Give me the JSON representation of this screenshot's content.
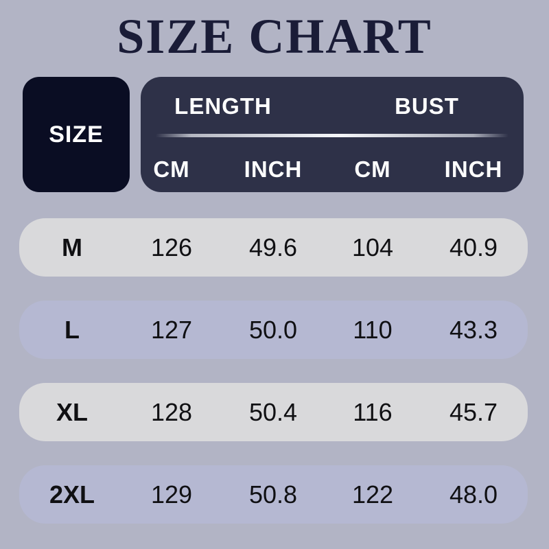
{
  "title": "SIZE CHART",
  "colors": {
    "page_background": "#b2b4c5",
    "title_text": "#1a1c37",
    "size_box_background": "#0a0d23",
    "measurement_box_background": "#2e3148",
    "header_text": "#ffffff",
    "row_gray": "#d9d9db",
    "row_lavender": "#b5b8d2",
    "row_text": "#101013"
  },
  "table": {
    "size_header": "SIZE",
    "groups": [
      "LENGTH",
      "BUST"
    ],
    "sub_headers": [
      "CM",
      "INCH",
      "CM",
      "INCH"
    ],
    "rows": [
      {
        "size": "M",
        "length_cm": "126",
        "length_inch": "49.6",
        "bust_cm": "104",
        "bust_inch": "40.9"
      },
      {
        "size": "L",
        "length_cm": "127",
        "length_inch": "50.0",
        "bust_cm": "110",
        "bust_inch": "43.3"
      },
      {
        "size": "XL",
        "length_cm": "128",
        "length_inch": "50.4",
        "bust_cm": "116",
        "bust_inch": "45.7"
      },
      {
        "size": "2XL",
        "length_cm": "129",
        "length_inch": "50.8",
        "bust_cm": "122",
        "bust_inch": "48.0"
      }
    ]
  },
  "chart_data": {
    "type": "table",
    "title": "SIZE CHART",
    "column_groups": [
      "LENGTH",
      "BUST"
    ],
    "columns": [
      "SIZE",
      "LENGTH CM",
      "LENGTH INCH",
      "BUST CM",
      "BUST INCH"
    ],
    "rows": [
      [
        "M",
        126,
        49.6,
        104,
        40.9
      ],
      [
        "L",
        127,
        50.0,
        110,
        43.3
      ],
      [
        "XL",
        128,
        50.4,
        116,
        45.7
      ],
      [
        "2XL",
        129,
        50.8,
        122,
        48.0
      ]
    ]
  }
}
